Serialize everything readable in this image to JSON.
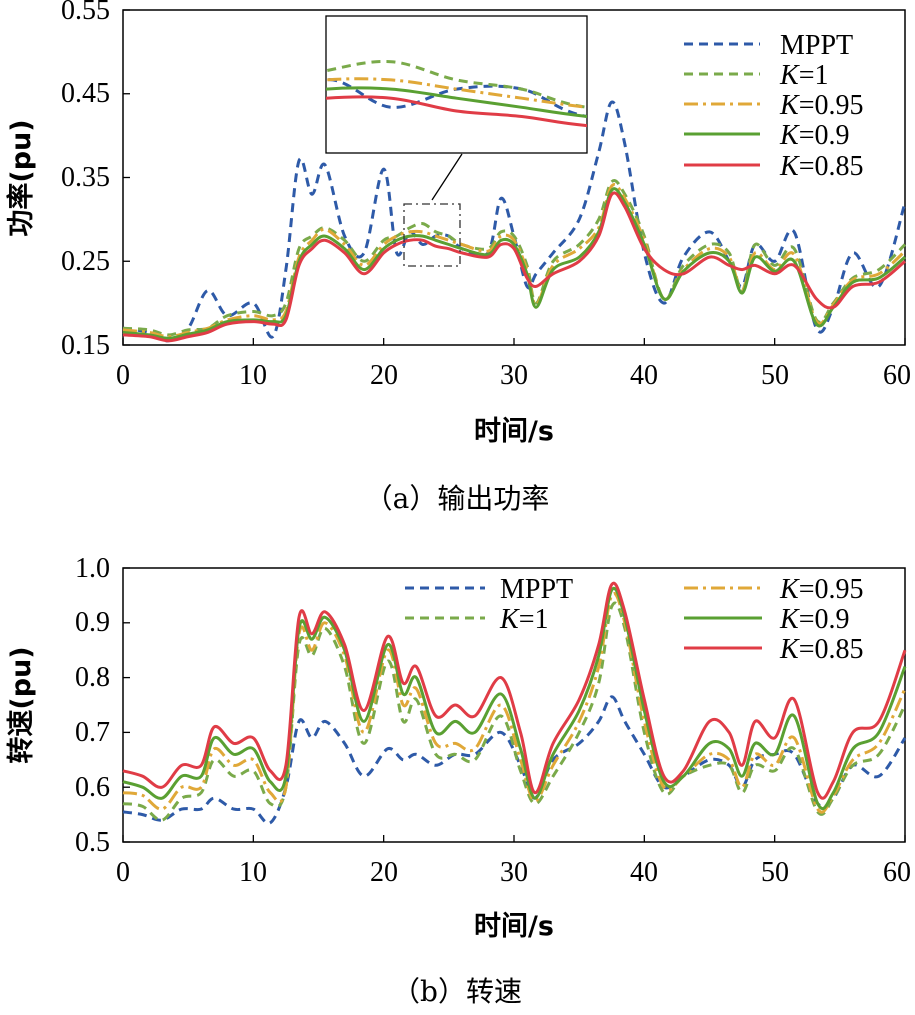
{
  "colors": {
    "MPPT": "#2e5aa8",
    "K=1": "#7aaa4a",
    "K=0.95": "#e0a838",
    "K=0.9": "#5aa032",
    "K=0.85": "#e03c46"
  },
  "chart_data": [
    {
      "type": "line",
      "caption": "（a）输出功率",
      "xlabel": "时间/s",
      "ylabel": "功率(pu)",
      "xlim": [
        0,
        60
      ],
      "ylim": [
        0.15,
        0.55
      ],
      "xticks": [
        "0",
        "10",
        "20",
        "30",
        "40",
        "50",
        "60"
      ],
      "yticks": [
        "0.15",
        "0.25",
        "0.35",
        "0.45",
        "0.55"
      ],
      "legend": [
        {
          "label": "MPPT",
          "style": "dashed",
          "color": "#2e5aa8"
        },
        {
          "label": "K=1",
          "style": "dashed",
          "color": "#7aaa4a"
        },
        {
          "label": "K=0.95",
          "style": "dashdot",
          "color": "#e0a838"
        },
        {
          "label": "K=0.9",
          "style": "solid",
          "color": "#5aa032"
        },
        {
          "label": "K=0.85",
          "style": "solid",
          "color": "#e03c46"
        }
      ],
      "inset": {
        "x_range": [
          22,
          26
        ],
        "y_range": [
          0.245,
          0.32
        ],
        "legend_placement": "top-center"
      },
      "x": [
        0,
        2,
        3.5,
        5,
        6.5,
        8,
        10,
        11.5,
        12.5,
        13.5,
        14.5,
        15.5,
        17,
        18.5,
        20,
        21,
        22,
        23,
        24,
        25,
        26,
        28,
        29,
        30,
        31,
        31.7,
        33,
        35,
        36.5,
        37.5,
        38.5,
        40,
        41.5,
        43,
        45,
        46.5,
        47.5,
        48.5,
        50,
        51.5,
        53.2,
        54.5,
        56,
        58,
        60
      ],
      "series": [
        {
          "name": "MPPT",
          "values": [
            0.17,
            0.165,
            0.155,
            0.17,
            0.215,
            0.185,
            0.2,
            0.16,
            0.24,
            0.37,
            0.33,
            0.365,
            0.28,
            0.26,
            0.36,
            0.26,
            0.285,
            0.27,
            0.28,
            0.28,
            0.265,
            0.26,
            0.325,
            0.28,
            0.22,
            0.235,
            0.26,
            0.3,
            0.38,
            0.44,
            0.39,
            0.26,
            0.2,
            0.255,
            0.285,
            0.25,
            0.22,
            0.27,
            0.25,
            0.285,
            0.17,
            0.195,
            0.26,
            0.22,
            0.32
          ]
        },
        {
          "name": "K=1",
          "values": [
            0.17,
            0.168,
            0.162,
            0.168,
            0.17,
            0.185,
            0.19,
            0.185,
            0.2,
            0.265,
            0.28,
            0.29,
            0.275,
            0.25,
            0.275,
            0.28,
            0.29,
            0.295,
            0.285,
            0.28,
            0.27,
            0.265,
            0.285,
            0.28,
            0.245,
            0.2,
            0.25,
            0.27,
            0.3,
            0.345,
            0.33,
            0.28,
            0.205,
            0.245,
            0.27,
            0.26,
            0.215,
            0.27,
            0.245,
            0.265,
            0.18,
            0.2,
            0.23,
            0.24,
            0.27
          ]
        },
        {
          "name": "K=0.95",
          "values": [
            0.168,
            0.165,
            0.16,
            0.165,
            0.17,
            0.18,
            0.185,
            0.18,
            0.19,
            0.255,
            0.275,
            0.288,
            0.27,
            0.245,
            0.27,
            0.28,
            0.285,
            0.285,
            0.28,
            0.275,
            0.27,
            0.262,
            0.28,
            0.275,
            0.24,
            0.198,
            0.245,
            0.265,
            0.29,
            0.34,
            0.325,
            0.275,
            0.205,
            0.24,
            0.265,
            0.255,
            0.215,
            0.26,
            0.24,
            0.258,
            0.178,
            0.198,
            0.228,
            0.235,
            0.262
          ]
        },
        {
          "name": "K=0.9",
          "values": [
            0.165,
            0.162,
            0.158,
            0.163,
            0.168,
            0.178,
            0.18,
            0.178,
            0.185,
            0.25,
            0.27,
            0.28,
            0.265,
            0.24,
            0.265,
            0.275,
            0.28,
            0.28,
            0.275,
            0.27,
            0.265,
            0.258,
            0.275,
            0.27,
            0.235,
            0.195,
            0.24,
            0.255,
            0.285,
            0.335,
            0.32,
            0.27,
            0.205,
            0.238,
            0.26,
            0.25,
            0.212,
            0.255,
            0.238,
            0.25,
            0.175,
            0.195,
            0.225,
            0.23,
            0.255
          ]
        },
        {
          "name": "K=0.85",
          "values": [
            0.162,
            0.16,
            0.155,
            0.16,
            0.165,
            0.175,
            0.178,
            0.175,
            0.18,
            0.245,
            0.265,
            0.275,
            0.26,
            0.235,
            0.26,
            0.27,
            0.275,
            0.275,
            0.268,
            0.265,
            0.26,
            0.255,
            0.27,
            0.265,
            0.23,
            0.22,
            0.235,
            0.25,
            0.28,
            0.33,
            0.315,
            0.265,
            0.24,
            0.235,
            0.255,
            0.245,
            0.24,
            0.245,
            0.235,
            0.245,
            0.205,
            0.195,
            0.22,
            0.225,
            0.25
          ]
        }
      ]
    },
    {
      "type": "line",
      "caption": "（b）转速",
      "xlabel": "时间/s",
      "ylabel": "转速(pu)",
      "xlim": [
        0,
        60
      ],
      "ylim": [
        0.5,
        1.0
      ],
      "xticks": [
        "0",
        "10",
        "20",
        "30",
        "40",
        "50",
        "60"
      ],
      "yticks": [
        "0.5",
        "0.6",
        "0.7",
        "0.8",
        "0.9",
        "1.0"
      ],
      "legend": [
        {
          "label": "MPPT",
          "style": "dashed",
          "color": "#2e5aa8"
        },
        {
          "label": "K=1",
          "style": "dashed",
          "color": "#7aaa4a"
        },
        {
          "label": "K=0.95",
          "style": "dashdot",
          "color": "#e0a838"
        },
        {
          "label": "K=0.9",
          "style": "solid",
          "color": "#5aa032"
        },
        {
          "label": "K=0.85",
          "style": "solid",
          "color": "#e03c46"
        }
      ],
      "x": [
        0,
        1.5,
        3,
        4.5,
        6,
        7,
        8.5,
        10,
        11.3,
        12.5,
        13.5,
        14.5,
        15.5,
        17,
        18.5,
        20.3,
        21.5,
        22.5,
        24,
        25.5,
        27,
        29,
        30.5,
        31.6,
        33,
        35,
        36.5,
        37.5,
        38.5,
        40,
        41.5,
        43,
        45,
        46.5,
        47.5,
        48.5,
        50,
        51.5,
        53.3,
        54.5,
        56,
        58,
        60
      ],
      "series": [
        {
          "name": "MPPT",
          "values": [
            0.555,
            0.55,
            0.54,
            0.56,
            0.56,
            0.58,
            0.56,
            0.56,
            0.535,
            0.6,
            0.72,
            0.69,
            0.72,
            0.68,
            0.62,
            0.67,
            0.65,
            0.66,
            0.64,
            0.66,
            0.66,
            0.7,
            0.64,
            0.58,
            0.65,
            0.68,
            0.72,
            0.765,
            0.72,
            0.66,
            0.6,
            0.62,
            0.65,
            0.64,
            0.6,
            0.65,
            0.66,
            0.66,
            0.57,
            0.58,
            0.64,
            0.62,
            0.69
          ]
        },
        {
          "name": "K=1",
          "values": [
            0.57,
            0.565,
            0.54,
            0.58,
            0.59,
            0.65,
            0.62,
            0.63,
            0.57,
            0.6,
            0.86,
            0.84,
            0.89,
            0.82,
            0.68,
            0.83,
            0.72,
            0.76,
            0.66,
            0.66,
            0.65,
            0.73,
            0.63,
            0.57,
            0.62,
            0.7,
            0.79,
            0.93,
            0.89,
            0.7,
            0.59,
            0.62,
            0.64,
            0.64,
            0.59,
            0.64,
            0.63,
            0.67,
            0.555,
            0.58,
            0.64,
            0.66,
            0.75
          ]
        },
        {
          "name": "K=0.95",
          "values": [
            0.59,
            0.585,
            0.56,
            0.6,
            0.6,
            0.67,
            0.64,
            0.65,
            0.59,
            0.6,
            0.88,
            0.85,
            0.9,
            0.84,
            0.7,
            0.85,
            0.75,
            0.78,
            0.68,
            0.68,
            0.67,
            0.75,
            0.65,
            0.575,
            0.64,
            0.72,
            0.82,
            0.95,
            0.9,
            0.72,
            0.6,
            0.62,
            0.66,
            0.65,
            0.6,
            0.66,
            0.64,
            0.69,
            0.56,
            0.585,
            0.65,
            0.68,
            0.78
          ]
        },
        {
          "name": "K=0.9",
          "values": [
            0.61,
            0.6,
            0.58,
            0.62,
            0.62,
            0.69,
            0.66,
            0.67,
            0.61,
            0.62,
            0.89,
            0.87,
            0.91,
            0.85,
            0.72,
            0.86,
            0.77,
            0.8,
            0.7,
            0.72,
            0.7,
            0.77,
            0.67,
            0.58,
            0.66,
            0.74,
            0.84,
            0.96,
            0.91,
            0.74,
            0.61,
            0.62,
            0.68,
            0.67,
            0.62,
            0.68,
            0.66,
            0.73,
            0.57,
            0.59,
            0.67,
            0.7,
            0.82
          ]
        },
        {
          "name": "K=0.85",
          "values": [
            0.63,
            0.62,
            0.6,
            0.64,
            0.64,
            0.71,
            0.68,
            0.69,
            0.63,
            0.64,
            0.91,
            0.88,
            0.92,
            0.86,
            0.74,
            0.875,
            0.79,
            0.82,
            0.73,
            0.75,
            0.73,
            0.8,
            0.7,
            0.59,
            0.68,
            0.76,
            0.86,
            0.97,
            0.92,
            0.76,
            0.62,
            0.63,
            0.72,
            0.7,
            0.64,
            0.72,
            0.69,
            0.76,
            0.59,
            0.61,
            0.7,
            0.72,
            0.85
          ]
        }
      ]
    }
  ]
}
